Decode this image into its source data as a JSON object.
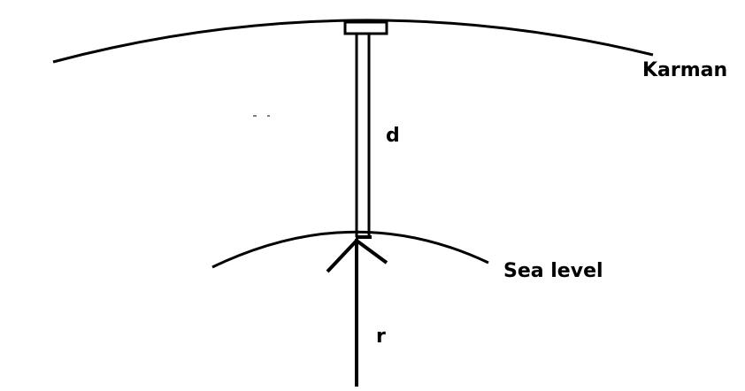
{
  "labels": {
    "karman": "Karman",
    "d": "d",
    "sea_level": "Sea level",
    "r": "r"
  },
  "colors": {
    "stroke": "#000000",
    "background": "#ffffff"
  }
}
